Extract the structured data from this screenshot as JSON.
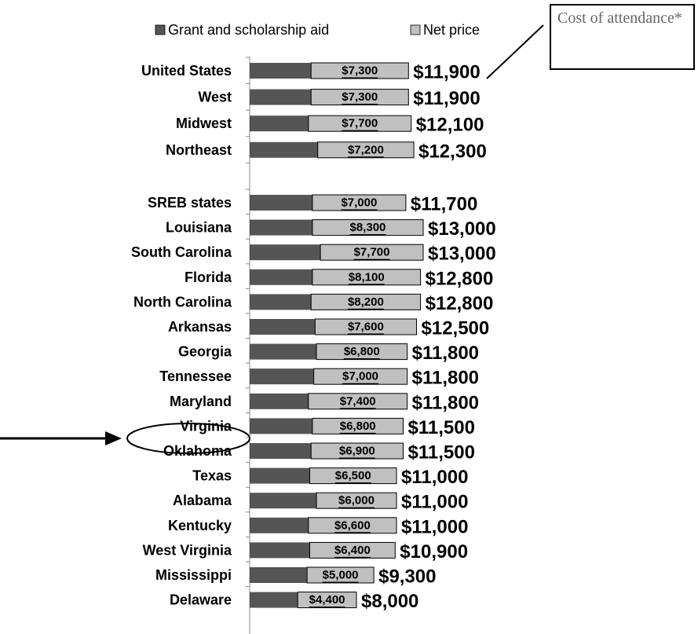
{
  "chart_data": {
    "type": "stacked-bar-horizontal",
    "annotation": "Cost of attendance*",
    "categories": [
      "United States",
      "West",
      "Midwest",
      "Northeast",
      null,
      "SREB states",
      "Louisiana",
      "South Carolina",
      "Florida",
      "North Carolina",
      "Arkansas",
      "Georgia",
      "Tennessee",
      "Maryland",
      "Virginia",
      "Oklahoma",
      "Texas",
      "Alabama",
      "Kentucky",
      "West Virginia",
      "Mississippi",
      "Delaware"
    ],
    "series": [
      {
        "name": "Grant and scholarship aid",
        "color": "#555555",
        "values": [
          4600,
          4600,
          4400,
          5100,
          null,
          4700,
          4700,
          5300,
          4700,
          4600,
          4900,
          5000,
          4800,
          4400,
          4700,
          4600,
          4500,
          5000,
          4400,
          4500,
          4300,
          3600
        ]
      },
      {
        "name": "Net price",
        "color": "#c0c0c0",
        "values": [
          7300,
          7300,
          7700,
          7200,
          null,
          7000,
          8300,
          7700,
          8100,
          8200,
          7600,
          6800,
          7000,
          7400,
          6800,
          6900,
          6500,
          6000,
          6600,
          6400,
          5000,
          4400
        ],
        "value_labels": [
          "$7,300",
          "$7,300",
          "$7,700",
          "$7,200",
          null,
          "$7,000",
          "$8,300",
          "$7,700",
          "$8,100",
          "$8,200",
          "$7,600",
          "$6,800",
          "$7,000",
          "$7,400",
          "$6,800",
          "$6,900",
          "$6,500",
          "$6,000",
          "$6,600",
          "$6,400",
          "$5,000",
          "$4,400"
        ]
      }
    ],
    "totals": [
      11900,
      11900,
      12100,
      12300,
      null,
      11700,
      13000,
      13000,
      12800,
      12800,
      12500,
      11800,
      11800,
      11800,
      11500,
      11500,
      11000,
      11000,
      11000,
      10900,
      9300,
      8000
    ],
    "total_labels": [
      "$11,900",
      "$11,900",
      "$12,100",
      "$12,300",
      null,
      "$11,700",
      "$13,000",
      "$13,000",
      "$12,800",
      "$12,800",
      "$12,500",
      "$11,800",
      "$11,800",
      "$11,800",
      "$11,500",
      "$11,500",
      "$11,000",
      "$11,000",
      "$11,000",
      "$10,900",
      "$9,300",
      "$8,000"
    ]
  }
}
